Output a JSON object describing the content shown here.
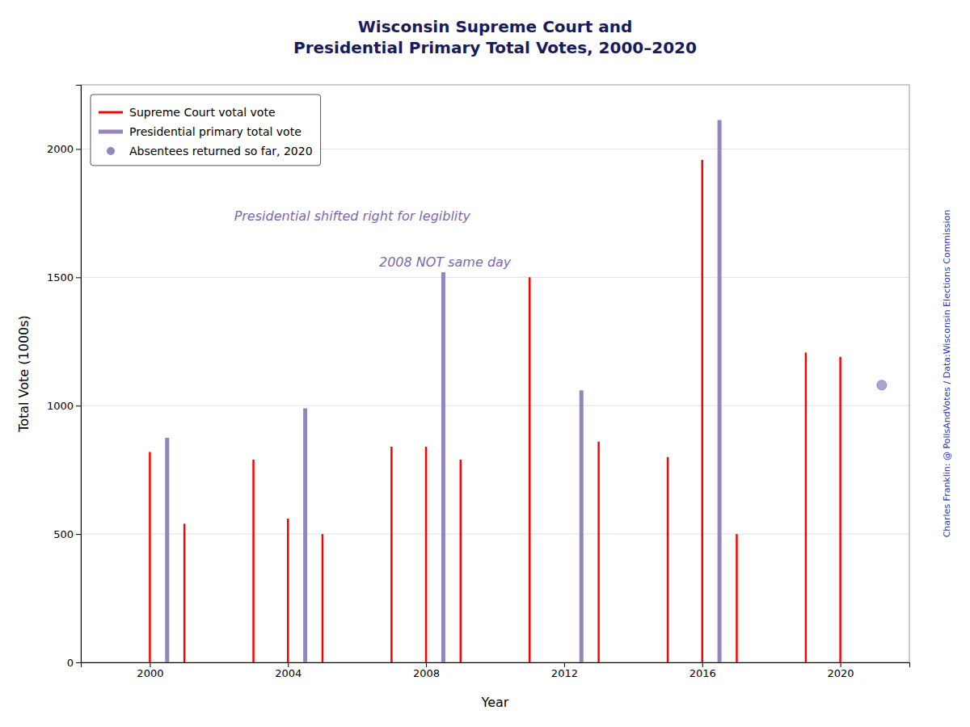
{
  "chart_data": {
    "type": "bar",
    "title": "Wisconsin Supreme Court and\nPresidential Primary Total Votes, 2000–2020",
    "xlabel": "Year",
    "ylabel": "Total Vote (1000s)",
    "annotations": [
      "Presidential shifted right for legiblity",
      "2008 NOT same day",
      "Charles Franklin: @ PollsAndVotes / Data:Wisconsin Elections Commission"
    ],
    "series": [
      {
        "name": "Supreme Court votal vote",
        "type": "bar",
        "color": "#FF0000",
        "x": [
          2000,
          2001,
          2003,
          2004,
          2005,
          2007,
          2008,
          2009,
          2011,
          2013,
          2015,
          2016,
          2017,
          2019,
          2020
        ],
        "values": [
          820,
          540,
          790,
          560,
          500,
          840,
          840,
          790,
          1500,
          860,
          800,
          1957,
          500,
          1207,
          1190
        ]
      },
      {
        "name": "Presidential primary total vote",
        "type": "bar",
        "color": "#9585BE",
        "x": [
          2000.5,
          2004.5,
          2008.5,
          2012.5,
          2016.5
        ],
        "values": [
          875,
          990,
          1520,
          1060,
          2113
        ]
      },
      {
        "name": "Absentees returned so far, 2020",
        "type": "scatter",
        "marker": "circle",
        "color": "#9585BE",
        "x": [
          2021.2
        ],
        "values": [
          1080
        ]
      }
    ],
    "xlim": [
      1998.0,
      2022.0
    ],
    "ylim": [
      0,
      2250
    ],
    "xticks": [
      2000,
      2004,
      2008,
      2012,
      2016,
      2020
    ],
    "yticks": [
      0,
      500,
      1000,
      1500,
      2000
    ],
    "grid": true,
    "legend": "upper left"
  }
}
